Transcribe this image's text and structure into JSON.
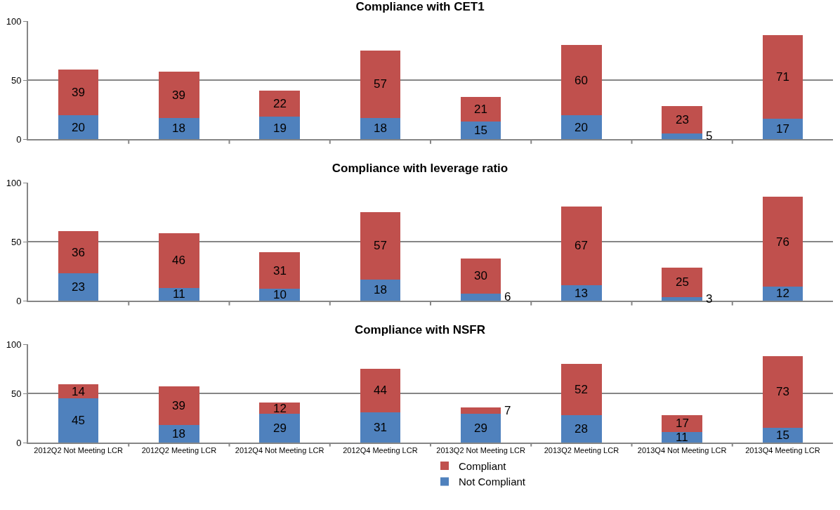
{
  "chart_data": [
    {
      "type": "bar",
      "title": "Compliance with CET1",
      "categories": [
        null,
        null,
        null,
        null,
        null,
        null,
        null,
        null
      ],
      "stacked": true,
      "series": [
        {
          "color": "#4f81bd",
          "values": [
            20,
            18,
            19,
            18,
            15,
            20,
            5,
            17
          ]
        },
        {
          "color": "#c0504d",
          "values": [
            39,
            39,
            22,
            57,
            21,
            60,
            23,
            71
          ]
        }
      ],
      "ylim": [
        0,
        100
      ],
      "yticks": [
        0,
        50,
        100
      ],
      "grid": "y",
      "data_labels": true,
      "tick_labels": "y"
    },
    {
      "type": "bar",
      "title": "Compliance with leverage ratio",
      "categories": [
        null,
        null,
        null,
        null,
        null,
        null,
        null,
        null
      ],
      "stacked": true,
      "series": [
        {
          "color": "#4f81bd",
          "values": [
            23,
            11,
            10,
            18,
            6,
            13,
            3,
            12
          ]
        },
        {
          "color": "#c0504d",
          "values": [
            36,
            46,
            31,
            57,
            30,
            67,
            25,
            76
          ]
        }
      ],
      "ylim": [
        0,
        100
      ],
      "yticks": [
        0,
        50,
        100
      ],
      "grid": "y",
      "data_labels": true,
      "tick_labels": "y"
    },
    {
      "type": "bar",
      "title": "Compliance with NSFR",
      "categories": [
        "2012Q2 Not Meeting LCR",
        "2012Q2 Meeting LCR",
        "2012Q4 Not Meeting LCR",
        "2012Q4 Meeting LCR",
        "2013Q2 Not Meeting LCR",
        "2013Q2 Meeting LCR",
        "2013Q4 Not Meeting LCR",
        "2013Q4 Meeting LCR"
      ],
      "stacked": true,
      "series": [
        {
          "name": "Not Compliant",
          "color": "#4f81bd",
          "values": [
            45,
            18,
            29,
            31,
            29,
            28,
            11,
            15
          ]
        },
        {
          "name": "Compliant",
          "color": "#c0504d",
          "values": [
            14,
            39,
            12,
            44,
            7,
            52,
            17,
            73
          ]
        }
      ],
      "ylim": [
        0,
        100
      ],
      "yticks": [
        0,
        50,
        100
      ],
      "grid": "y",
      "data_labels": true,
      "legend": "bottom"
    }
  ]
}
